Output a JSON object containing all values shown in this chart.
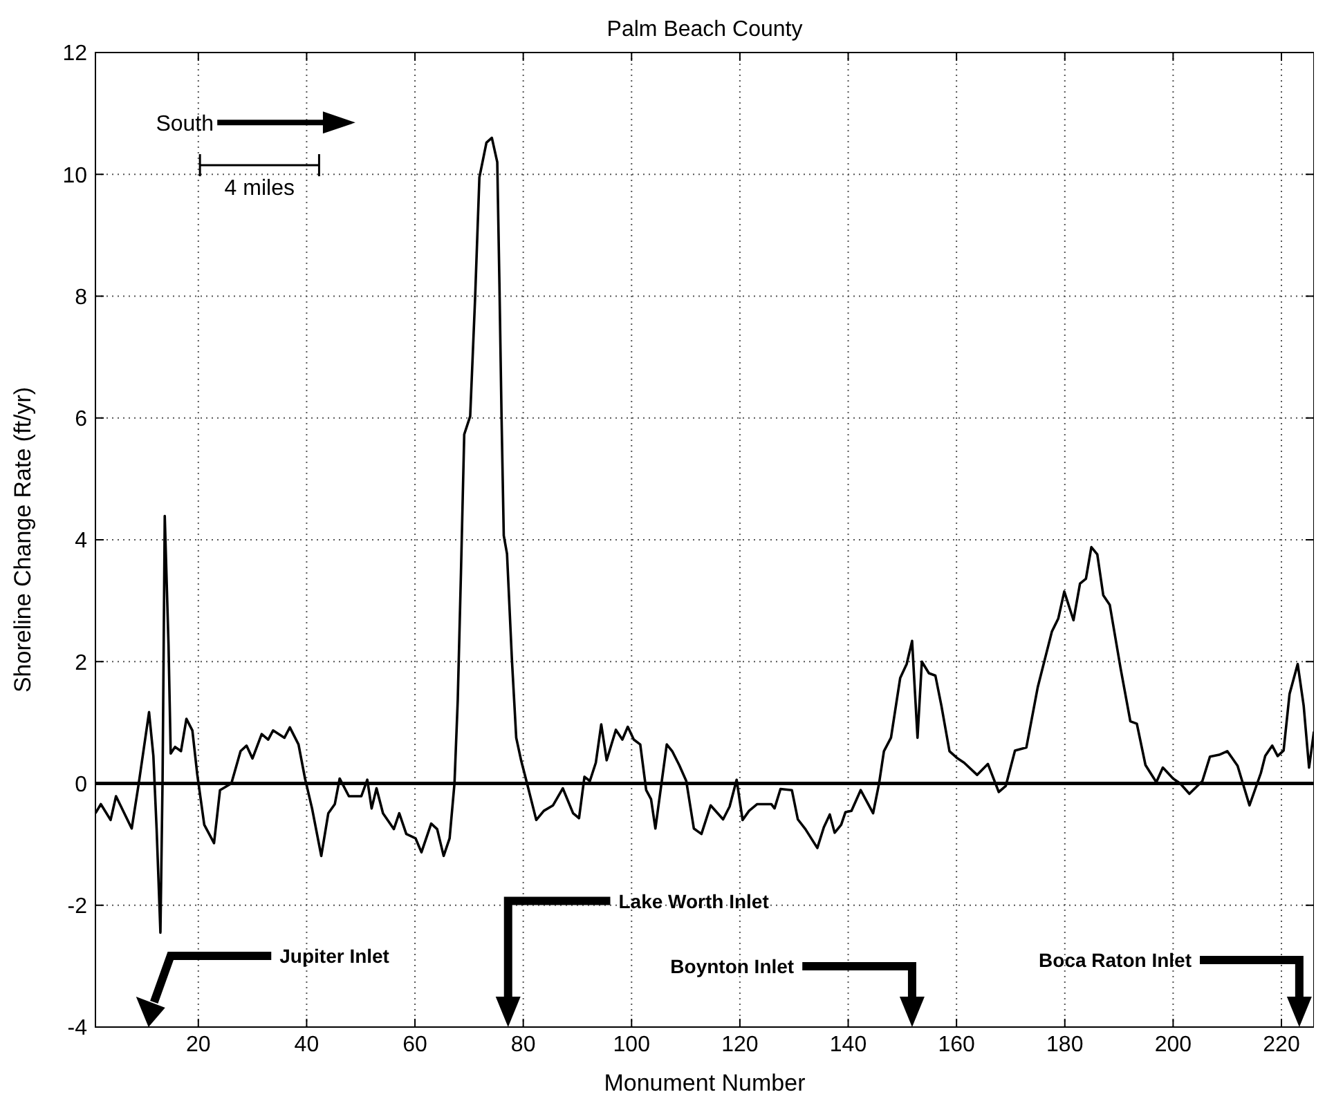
{
  "chart_data": {
    "type": "line",
    "title": "Palm Beach County",
    "xlabel": "Monument Number",
    "ylabel": "Shoreline Change Rate (ft/yr)",
    "xlim": [
      1,
      226
    ],
    "ylim": [
      -4,
      12
    ],
    "xticks": [
      20,
      40,
      60,
      80,
      100,
      120,
      140,
      160,
      180,
      200,
      220
    ],
    "yticks": [
      -4,
      -2,
      0,
      2,
      4,
      6,
      8,
      10,
      12
    ],
    "grid": true,
    "marker": "none",
    "line_style": "solid",
    "ref_lines": [
      {
        "axis": "y",
        "value": 0,
        "color": "#000000"
      }
    ],
    "annotations": [
      "South",
      "4 miles",
      "Jupiter Inlet",
      "Lake Worth Inlet",
      "Boynton Inlet",
      "Boca Raton Inlet"
    ],
    "series": [
      {
        "color": "#000000",
        "x": [
          1.0,
          2.0,
          3.8,
          4.8,
          7.7,
          9.0,
          10.9,
          11.7,
          12.3,
          13.0,
          13.4,
          13.8,
          14.5,
          14.9,
          15.7,
          16.8,
          17.8,
          18.9,
          19.8,
          21.1,
          22.9,
          24.0,
          26.1,
          27.8,
          28.9,
          30.0,
          31.7,
          32.9,
          33.8,
          35.9,
          36.9,
          38.5,
          39.7,
          41.0,
          42.7,
          44.0,
          45.2,
          46.1,
          47.8,
          50.1,
          51.2,
          52.0,
          52.9,
          54.1,
          56.1,
          57.1,
          58.4,
          60.1,
          61.2,
          63.0,
          64.1,
          65.3,
          66.4,
          67.3,
          67.9,
          68.5,
          69.1,
          70.2,
          71.1,
          71.9,
          73.2,
          74.2,
          75.2,
          75.6,
          76.0,
          76.4,
          77.0,
          77.9,
          78.7,
          79.6,
          80.7,
          82.4,
          83.8,
          85.5,
          87.3,
          89.2,
          90.3,
          91.3,
          92.3,
          93.4,
          94.4,
          95.4,
          97.1,
          98.3,
          99.3,
          100.4,
          101.6,
          102.7,
          103.6,
          104.4,
          105.4,
          106.5,
          107.5,
          108.8,
          110.1,
          111.5,
          112.9,
          114.6,
          116.9,
          118.1,
          119.4,
          120.5,
          121.7,
          123.2,
          125.8,
          126.4,
          127.5,
          129.6,
          130.7,
          132.1,
          134.3,
          135.5,
          136.6,
          137.5,
          138.7,
          139.5,
          140.6,
          142.3,
          144.6,
          145.7,
          146.6,
          147.9,
          149.6,
          150.8,
          151.8,
          152.8,
          153.6,
          154.9,
          156.1,
          157.2,
          158.7,
          160.2,
          161.4,
          163.8,
          165.8,
          167.8,
          169.1,
          170.8,
          172.9,
          175.0,
          177.6,
          178.8,
          179.9,
          181.6,
          182.8,
          183.9,
          184.9,
          186.0,
          187.1,
          188.3,
          190.3,
          192.1,
          193.3,
          194.9,
          196.9,
          198.1,
          200.0,
          201.3,
          203.0,
          205.4,
          206.8,
          208.5,
          210.0,
          211.9,
          214.1,
          216.2,
          217.0,
          218.3,
          219.3,
          220.4,
          221.5,
          223.0,
          224.1,
          225.1,
          226.0
        ],
        "values": [
          -0.49,
          -0.34,
          -0.6,
          -0.21,
          -0.74,
          0,
          1.17,
          0.45,
          -0.75,
          -2.45,
          0.08,
          4.39,
          2.26,
          0.49,
          0.6,
          0.53,
          1.06,
          0.87,
          0.15,
          -0.68,
          -0.98,
          -0.11,
          0,
          0.53,
          0.62,
          0.41,
          0.81,
          0.72,
          0.87,
          0.75,
          0.92,
          0.64,
          0.08,
          -0.41,
          -1.19,
          -0.49,
          -0.34,
          0.08,
          -0.21,
          -0.21,
          0.06,
          -0.41,
          -0.08,
          -0.49,
          -0.75,
          -0.49,
          -0.83,
          -0.9,
          -1.13,
          -0.66,
          -0.75,
          -1.19,
          -0.9,
          0,
          1.36,
          3.47,
          5.73,
          6.03,
          7.95,
          9.95,
          10.52,
          10.6,
          10.2,
          8.2,
          5.97,
          4.07,
          3.77,
          2.04,
          0.75,
          0.38,
          0,
          -0.6,
          -0.45,
          -0.36,
          -0.08,
          -0.49,
          -0.57,
          0.11,
          0.04,
          0.34,
          0.97,
          0.38,
          0.88,
          0.72,
          0.93,
          0.72,
          0.64,
          -0.11,
          -0.26,
          -0.74,
          -0.08,
          0.64,
          0.53,
          0.3,
          0.04,
          -0.74,
          -0.83,
          -0.36,
          -0.59,
          -0.38,
          0.06,
          -0.6,
          -0.45,
          -0.34,
          -0.34,
          -0.41,
          -0.09,
          -0.11,
          -0.59,
          -0.75,
          -1.06,
          -0.72,
          -0.51,
          -0.81,
          -0.68,
          -0.47,
          -0.45,
          -0.11,
          -0.49,
          0,
          0.53,
          0.75,
          1.73,
          1.96,
          2.34,
          0.75,
          2.0,
          1.81,
          1.77,
          1.28,
          0.53,
          0.41,
          0.34,
          0.14,
          0.32,
          -0.14,
          -0.04,
          0.54,
          0.59,
          1.58,
          2.49,
          2.71,
          3.15,
          2.68,
          3.28,
          3.36,
          3.88,
          3.76,
          3.09,
          2.93,
          1.89,
          1.02,
          0.98,
          0.3,
          0.02,
          0.26,
          0.08,
          0,
          -0.17,
          0.04,
          0.44,
          0.47,
          0.53,
          0.29,
          -0.36,
          0.17,
          0.45,
          0.62,
          0.45,
          0.54,
          1.47,
          1.96,
          1.28,
          0.26,
          0.85
        ]
      }
    ]
  }
}
